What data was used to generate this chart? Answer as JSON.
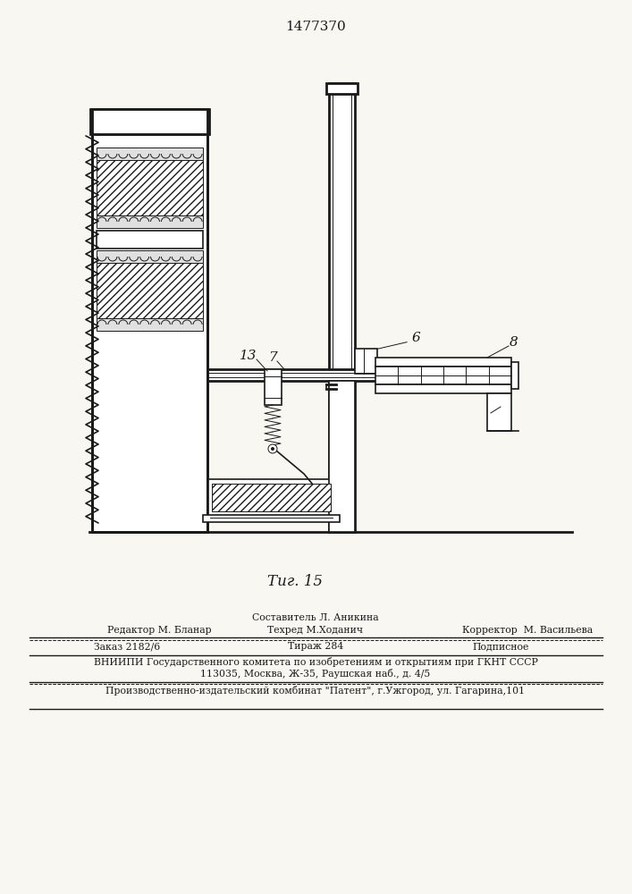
{
  "title": "1477370",
  "fig_label": "Τиг. 15",
  "bg_color": "#f8f7f2",
  "line_color": "#1a1a1a",
  "footer": {
    "line1": "Составитель Л. Аникина",
    "line2_left": "Редактор М. Бланар",
    "line2_mid": "Техред М.Ходанич",
    "line2_right": "Корректор  М. Васильева",
    "line3_a": "Заказ 2182/6",
    "line3_b": "Тираж 284",
    "line3_c": "Подписное",
    "line4": "ВНИИПИ Государственного комитета по изобретениям и открытиям при ГКНТ СССР",
    "line5": "113035, Москва, Ж-35, Раушская наб., д. 4/5",
    "line6": "Производственно-издательский комбинат \"Патент\", г.Ужгород, ул. Гагарина,101"
  }
}
